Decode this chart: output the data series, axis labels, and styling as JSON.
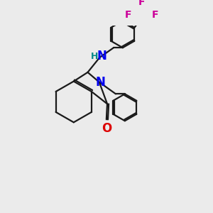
{
  "bg_color": "#ebebeb",
  "bond_color": "#1a1a1a",
  "N_color": "#0000ee",
  "O_color": "#dd0000",
  "F_color": "#cc0099",
  "NH_color": "#008888",
  "line_width": 1.6,
  "figsize": [
    3.0,
    3.0
  ],
  "dpi": 100,
  "xlim": [
    0,
    10
  ],
  "ylim": [
    0,
    10
  ]
}
